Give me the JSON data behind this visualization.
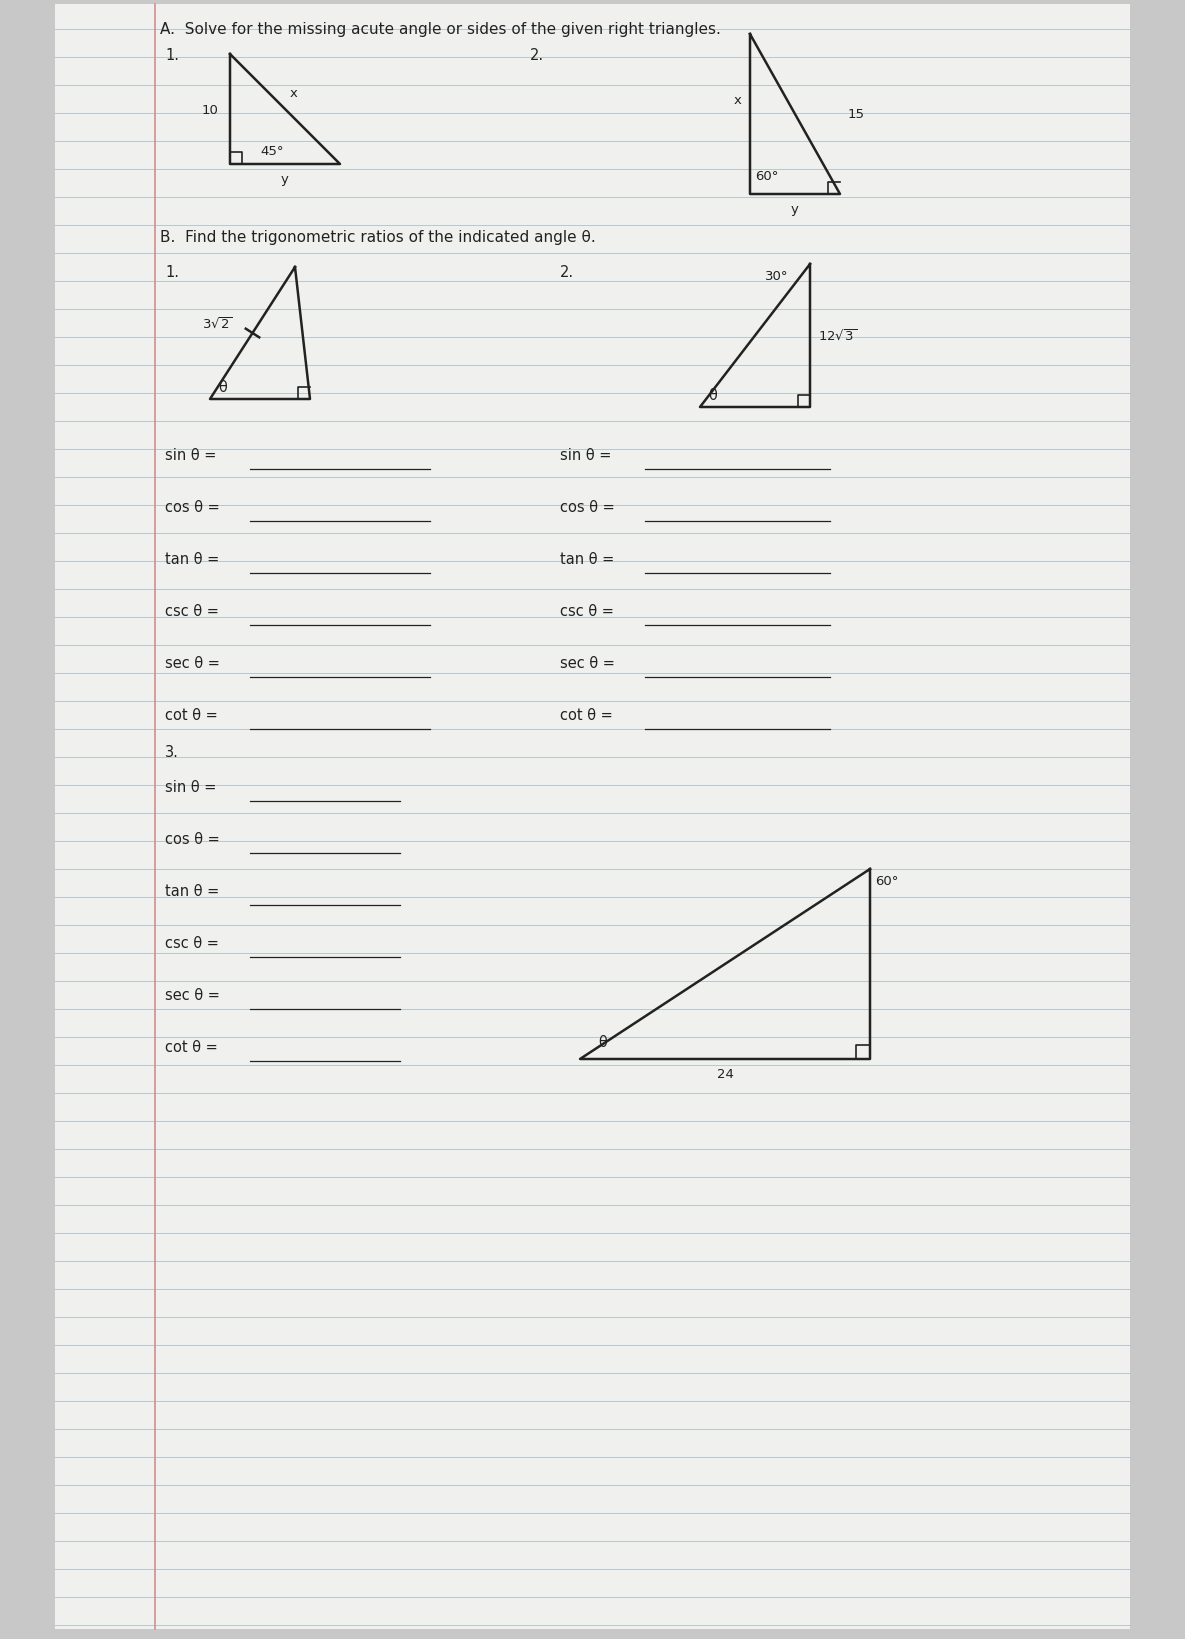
{
  "bg_color": "#c8c8c8",
  "paper_color": "#f0f0ee",
  "line_color": "#222222",
  "line_bg_color": "#c0ccd8",
  "title_A": "A.  Solve for the missing acute angle or sides of the given right triangles.",
  "title_B": "B.  Find the trigonometric ratios of the indicated angle θ.",
  "trig_funcs": [
    "sin θ = ",
    "cos θ = ",
    "tan θ = ",
    "csc θ = ",
    "sec θ = ",
    "cot θ = "
  ],
  "font_size_title": 11,
  "font_size_label": 10.5,
  "font_size_small": 9.5
}
